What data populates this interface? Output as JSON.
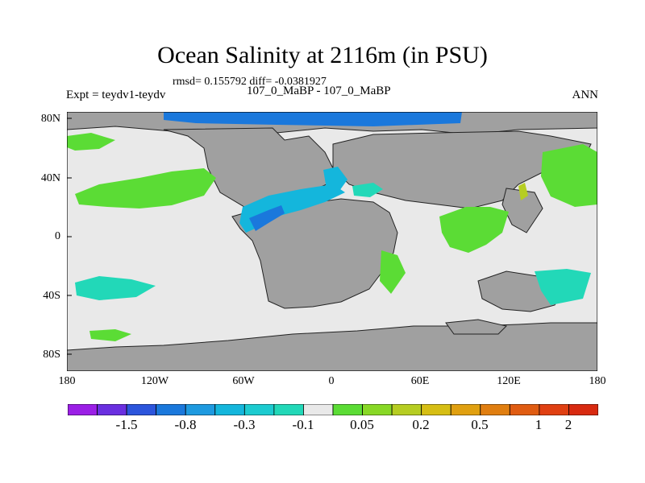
{
  "title": "Ocean Salinity at 2116m (in PSU)",
  "stats": "rmsd= 0.155792 diff= -0.0381927",
  "expt_label": "Expt = teydv1-teydv",
  "experiment": "107_0_MaBP - 107_0_MaBP",
  "season": "ANN",
  "lat_labels": [
    "80N",
    "40N",
    "0",
    "40S",
    "80S"
  ],
  "lon_labels": [
    "180",
    "120W",
    "60W",
    "0",
    "60E",
    "120E",
    "180"
  ],
  "colorbar": {
    "colors": [
      "#9b1fe6",
      "#6a2fe0",
      "#2c55dc",
      "#1a78dc",
      "#1e9ae0",
      "#14b6dc",
      "#1ccbd0",
      "#22d8b8",
      "#e9e9e9",
      "#5bdc35",
      "#88d826",
      "#b6cd22",
      "#d6be14",
      "#e0a010",
      "#e07e10",
      "#e05c12",
      "#e04012",
      "#d82a10"
    ],
    "labels": [
      "-1.5",
      "-0.8",
      "-0.3",
      "-0.1",
      "0.05",
      "0.2",
      "0.5",
      "1",
      "2"
    ]
  },
  "map_colors": {
    "land": "#a0a0a0",
    "ocean": "#e9e9e9",
    "fresh_strong": "#1a78dc",
    "fresh_medium": "#14b6dc",
    "fresh_light": "#22d8b8",
    "salty": "#5bdc35"
  }
}
